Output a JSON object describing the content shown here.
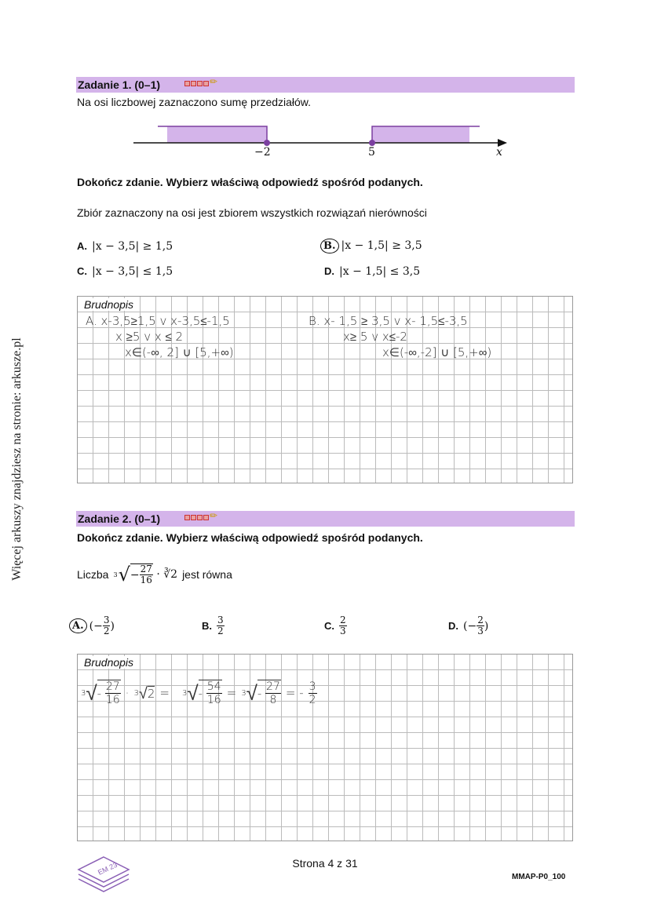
{
  "side_note": "Więcej arkuszy znajdziesz na stronie: arkusze.pl",
  "task1": {
    "title": "Zadanie 1. (0–1)",
    "intro": "Na osi liczbowej zaznaczono sumę przedziałów.",
    "axis": {
      "labels": [
        "−2",
        "5"
      ],
      "var": "x",
      "colors": {
        "fill": "#d4b4ea",
        "point": "#7b3fa0"
      }
    },
    "instruction": "Dokończ zdanie. Wybierz właściwą odpowiedź spośród podanych.",
    "stem": "Zbiór zaznaczony na osi jest zbiorem wszystkich rozwiązań nierówności",
    "options": [
      {
        "label": "A.",
        "text": "|x − 3,5| ≥ 1,5"
      },
      {
        "label": "B.",
        "text": "|x − 1,5| ≥ 3,5",
        "selected": true
      },
      {
        "label": "C.",
        "text": "|x − 3,5| ≤ 1,5"
      },
      {
        "label": "D.",
        "text": "|x − 1,5| ≤ 3,5"
      }
    ],
    "scratch_title": "Brudnopis",
    "handwriting": [
      "A. x-3,5≥1,5  v x-3,5≤-1,5",
      "x ≥5  v   x ≤ 2",
      "x∈(-∞, 2] ∪ [5,+∞)",
      "B.  x- 1,5 ≥ 3,5   v    x- 1,5≤-3,5",
      "x≥ 5           v       x≤-2",
      "x∈(-∞,-2] ∪ [5,+∞)"
    ]
  },
  "task2": {
    "title": "Zadanie 2. (0–1)",
    "instruction": "Dokończ zdanie. Wybierz właściwą odpowiedź spośród podanych.",
    "stem_prefix": "Liczba",
    "stem_num": "27",
    "stem_den": "16",
    "stem_root2": "∛2",
    "stem_suffix": "jest równa",
    "options": [
      {
        "label": "A.",
        "sign": "(−",
        "num": "3",
        "den": "2",
        "close": ")",
        "selected": true
      },
      {
        "label": "B.",
        "sign": "",
        "num": "3",
        "den": "2",
        "close": ""
      },
      {
        "label": "C.",
        "sign": "",
        "num": "2",
        "den": "3",
        "close": ""
      },
      {
        "label": "D.",
        "sign": "(−",
        "num": "2",
        "den": "3",
        "close": ")"
      }
    ],
    "scratch_title": "Brudnopis",
    "handwriting": {
      "n1": "27",
      "d1": "16",
      "r2": "2",
      "n2": "54",
      "d2": "16",
      "n3": "27",
      "d3": "8",
      "rn": "3",
      "rd": "2",
      "idx": "3"
    }
  },
  "footer": {
    "page": "Strona 4 z 31",
    "code": "MMAP-P0_100",
    "logo": "EM 23"
  }
}
